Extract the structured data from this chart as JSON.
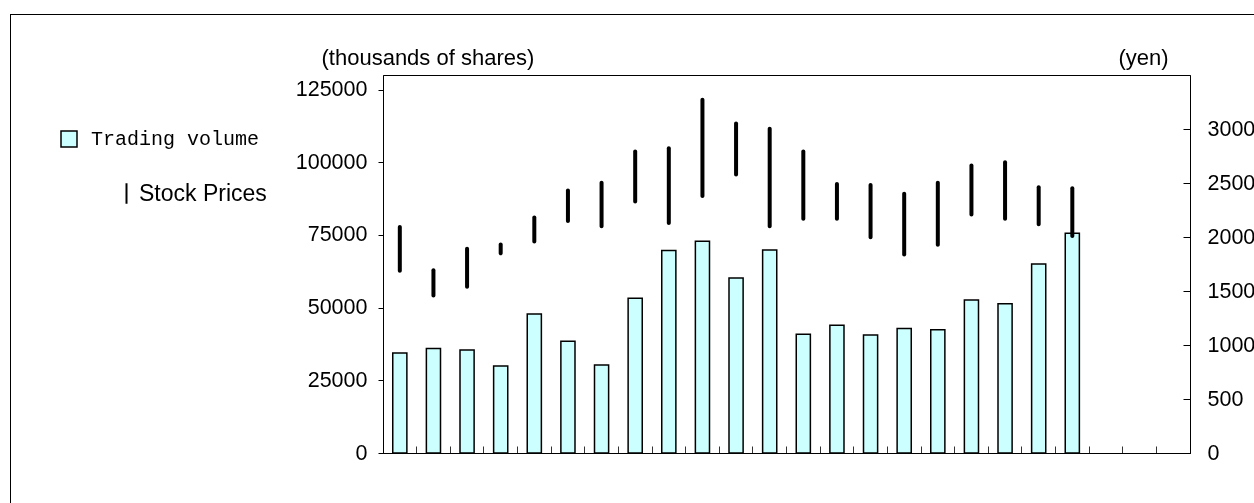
{
  "chart_data": {
    "type": "bar",
    "categories": [
      null,
      null,
      null,
      null,
      null,
      null,
      null,
      null,
      null,
      null,
      null,
      null,
      null,
      null,
      null,
      null,
      null,
      null,
      null,
      null,
      null,
      null,
      null,
      null
    ],
    "ylabel": "(thousands of shares)",
    "y2label": "(yen)",
    "ylim": [
      0,
      130000
    ],
    "yticks": [
      0,
      25000,
      50000,
      75000,
      100000,
      125000
    ],
    "y2lim": [
      0,
      3500
    ],
    "y2ticks": [
      0,
      500,
      1000,
      1500,
      2000,
      2500,
      3000
    ],
    "legend": "left",
    "series": [
      {
        "name": "Trading volume",
        "color": "#ccffff",
        "values": [
          34400,
          35900,
          35400,
          29900,
          47800,
          38400,
          30300,
          53200,
          69600,
          72800,
          60200,
          69800,
          40800,
          43900,
          40600,
          42800,
          42400,
          52600,
          51300,
          65000,
          75600,
          null,
          null,
          null
        ]
      },
      {
        "name": "Stock Prices",
        "axis": "y2",
        "color": "#000000",
        "base": [
          1670,
          1440,
          1520,
          1830,
          1940,
          2130,
          2080,
          2310,
          2110,
          2360,
          2560,
          2080,
          2150,
          2150,
          1980,
          1820,
          1910,
          2190,
          2150,
          2100,
          1990,
          null,
          null,
          null
        ],
        "values": [
          440,
          270,
          390,
          120,
          260,
          320,
          440,
          500,
          730,
          930,
          510,
          940,
          660,
          360,
          520,
          600,
          610,
          490,
          560,
          380,
          480,
          null,
          null,
          null
        ]
      }
    ]
  }
}
